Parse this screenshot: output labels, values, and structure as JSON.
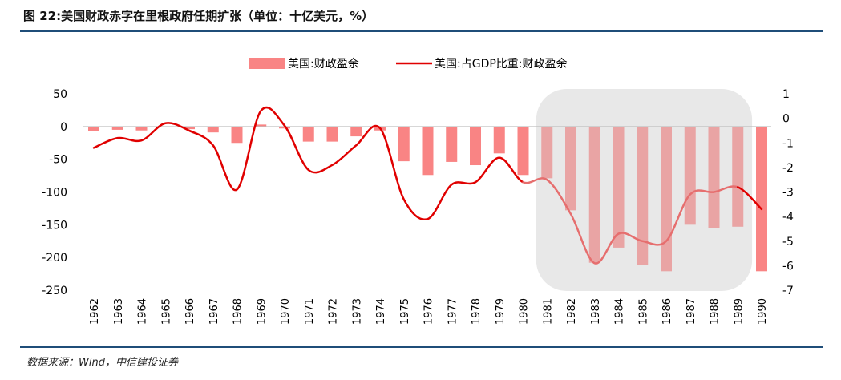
{
  "header": {
    "title": "图 22:美国财政赤字在里根政府任期扩张（单位：十亿美元，%）"
  },
  "footer": {
    "source": "数据来源：Wind，中信建投证券"
  },
  "colors": {
    "bar": "#f98484",
    "bar_shaded": "#e9a4a4",
    "line": "#e00000",
    "line_shaded": "#e66e6e",
    "highlight": "#e8e8e8",
    "rule": "#1f4e79"
  },
  "chart_data": {
    "type": "bar",
    "title": "",
    "xlabel": "",
    "ylabel": "",
    "categories": [
      "1962",
      "1963",
      "1964",
      "1965",
      "1966",
      "1967",
      "1968",
      "1969",
      "1970",
      "1971",
      "1972",
      "1973",
      "1974",
      "1975",
      "1976",
      "1977",
      "1978",
      "1979",
      "1980",
      "1981",
      "1982",
      "1983",
      "1984",
      "1985",
      "1986",
      "1987",
      "1988",
      "1989",
      "1990"
    ],
    "series": [
      {
        "name": "美国:财政盈余",
        "type": "bar",
        "axis": "left",
        "values": [
          -7,
          -5,
          -6,
          -1,
          -4,
          -9,
          -25,
          3,
          -3,
          -23,
          -23,
          -15,
          -6,
          -53,
          -74,
          -54,
          -59,
          -41,
          -74,
          -79,
          -128,
          -208,
          -185,
          -212,
          -221,
          -150,
          -155,
          -153,
          -221
        ]
      },
      {
        "name": "美国:占GDP比重:财政盈余",
        "type": "line",
        "axis": "right",
        "values": [
          -1.2,
          -0.8,
          -0.9,
          -0.2,
          -0.5,
          -1.1,
          -2.9,
          0.3,
          -0.3,
          -2.1,
          -1.9,
          -1.1,
          -0.4,
          -3.3,
          -4.1,
          -2.7,
          -2.6,
          -1.6,
          -2.6,
          -2.5,
          -3.9,
          -5.9,
          -4.7,
          -5.0,
          -5.0,
          -3.1,
          -3.0,
          -2.8,
          -3.7
        ]
      }
    ],
    "y_left": {
      "ticks": [
        50,
        0,
        -50,
        -100,
        -150,
        -200,
        -250
      ],
      "ylim": [
        -250,
        50
      ]
    },
    "y_right": {
      "ticks": [
        1,
        0,
        -1,
        -2,
        -3,
        -4,
        -5,
        -6,
        -7
      ],
      "ylim": [
        -7,
        1
      ]
    },
    "highlight_range": [
      "1981",
      "1989"
    ],
    "legend": {
      "position": "top-center",
      "entries": [
        "美国:财政盈余",
        "美国:占GDP比重:财政盈余"
      ]
    }
  }
}
